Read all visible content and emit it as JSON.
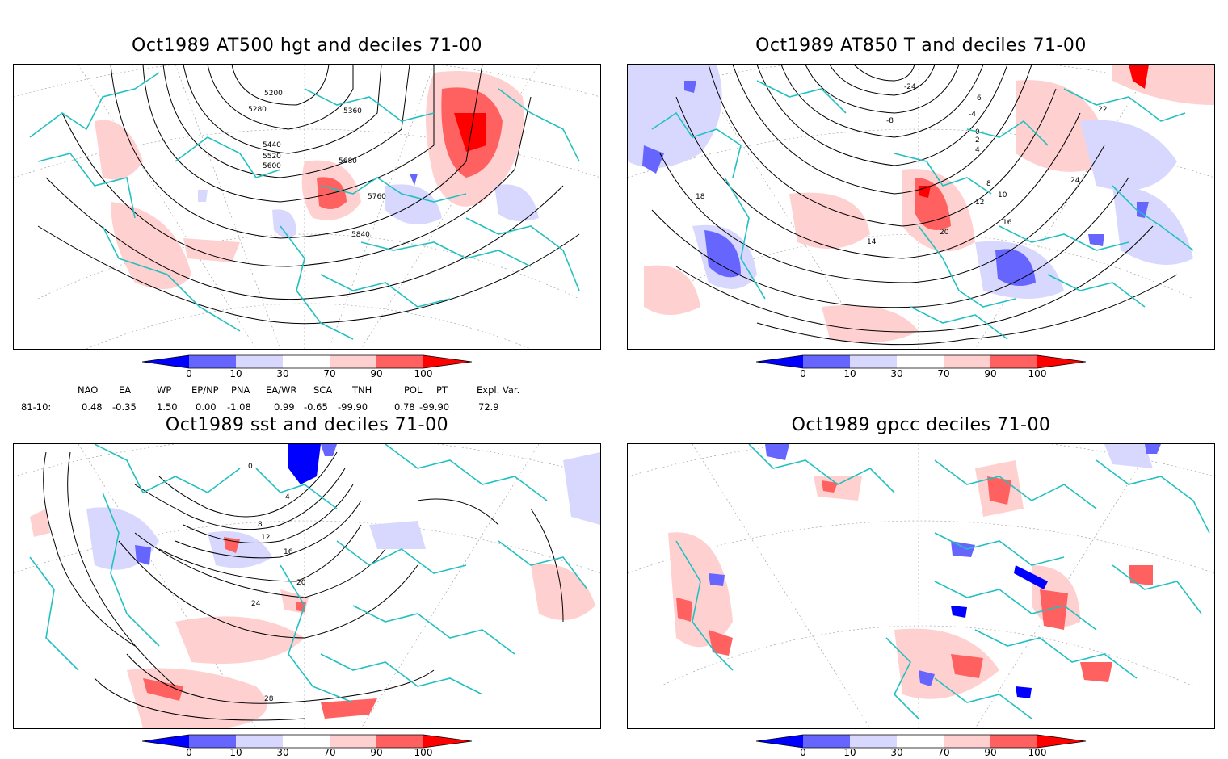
{
  "panels": [
    {
      "id": "z500",
      "title": "Oct1989 AT500 hgt and deciles 71-00",
      "contour_labels": [
        "5200",
        "5280",
        "5360",
        "5440",
        "5520",
        "5600",
        "5680",
        "5760",
        "5840"
      ]
    },
    {
      "id": "t850",
      "title": "Oct1989 AT850 T and deciles 71-00",
      "contour_labels": [
        "-24",
        "-8",
        "-4",
        "0",
        "2",
        "4",
        "6",
        "8",
        "10",
        "12",
        "14",
        "16",
        "18",
        "20",
        "22",
        "24"
      ]
    },
    {
      "id": "sst",
      "title": "Oct1989 sst and deciles 71-00",
      "contour_labels": [
        "0",
        "4",
        "8",
        "12",
        "16",
        "20",
        "24",
        "28"
      ]
    },
    {
      "id": "gpcc",
      "title": "Oct1989 gpcc deciles 71-00",
      "contour_labels": []
    }
  ],
  "colorbar": {
    "ticks": [
      "0",
      "10",
      "30",
      "70",
      "90",
      "100"
    ],
    "colors": [
      "#0000ff",
      "#6666ff",
      "#d8d8ff",
      "#ffffff",
      "#ffd0d0",
      "#ff6060",
      "#ff0000"
    ]
  },
  "teleconnections": {
    "headers": [
      "NAO",
      "EA",
      "WP",
      "EP/NP",
      "PNA",
      "EA/WR",
      "SCA",
      "TNH",
      "POL",
      "PT",
      "Expl. Var."
    ],
    "row_label": "81-10:",
    "values": [
      "0.48",
      "-0.35",
      "1.50",
      "0.00",
      "-1.08",
      "0.99",
      "-0.65",
      "-99.90",
      "0.78",
      "-99.90",
      "72.9"
    ]
  },
  "colors": {
    "coast": "#22c0c0",
    "positive_anomaly": "#ff6060",
    "negative_anomaly": "#6666ff"
  }
}
